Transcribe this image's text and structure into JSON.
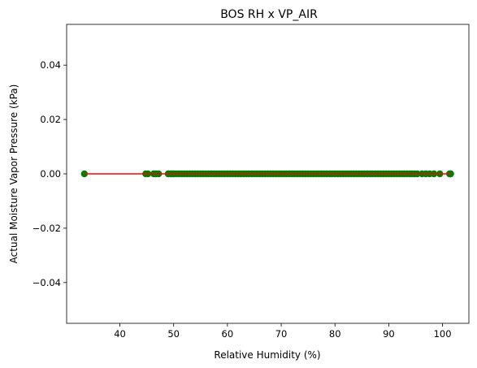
{
  "chart_data": {
    "type": "scatter",
    "title": "BOS RH x VP_AIR",
    "xlabel": "Relative Humidity (%)",
    "ylabel": "Actual Moisture Vapor Pressure (kPa)",
    "xlim": [
      30.1,
      104.9
    ],
    "ylim": [
      -0.055,
      0.055
    ],
    "x_ticks": [
      40,
      50,
      60,
      70,
      80,
      90,
      100
    ],
    "y_ticks": [
      -0.04,
      -0.02,
      0.0,
      0.02,
      0.04
    ],
    "y_tick_labels": [
      "−0.04",
      "−0.02",
      "0.00",
      "0.02",
      "0.04"
    ],
    "grid": false,
    "colors": {
      "points": "#007f00",
      "fit_line": "#ff0000"
    },
    "series": [
      {
        "kind": "points",
        "x": [
          33.4,
          44.8,
          45.2,
          46.3,
          46.7,
          47.2,
          49.0,
          49.6,
          50.0,
          101.5
        ],
        "y": [
          0,
          0,
          0,
          0,
          0,
          0,
          0,
          0,
          0,
          0
        ],
        "continuous_range": [
          49.0,
          92.5
        ],
        "sparse_x": [
          92.9,
          93.4,
          93.9,
          94.3,
          94.8,
          95.3,
          96.2,
          96.9,
          97.6,
          98.4,
          99.5,
          101.3,
          101.5
        ]
      },
      {
        "kind": "line",
        "x": [
          33.4,
          101.5
        ],
        "y": [
          0,
          0
        ]
      }
    ]
  }
}
